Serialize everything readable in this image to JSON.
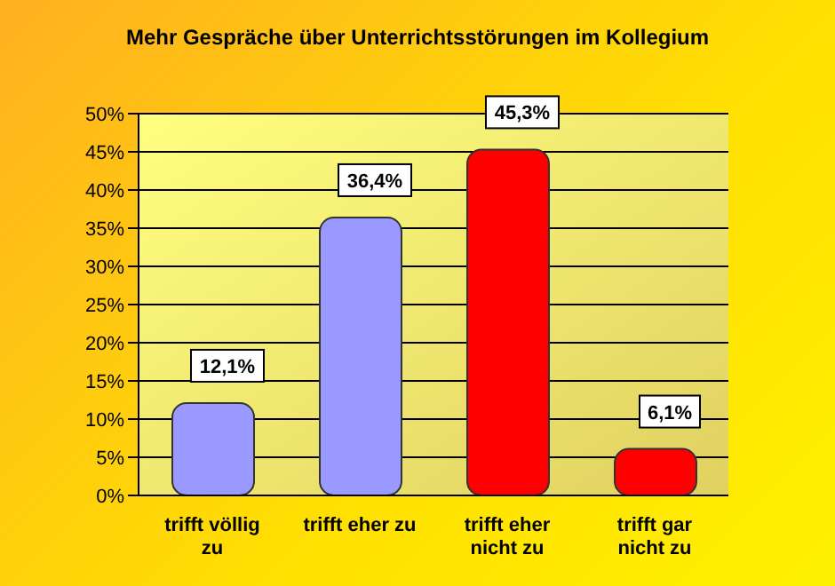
{
  "chart_data": {
    "type": "bar",
    "title": "Mehr Gespräche über Unterrichtsstörungen im Kollegium",
    "categories": [
      "trifft völlig zu",
      "trifft eher zu",
      "trifft eher nicht zu",
      "trifft gar nicht zu"
    ],
    "values": [
      12.1,
      36.4,
      45.3,
      6.1
    ],
    "colors": [
      "#9999ff",
      "#9999ff",
      "#ff0000",
      "#ff0000"
    ],
    "value_labels": [
      "12,1%",
      "36,4%",
      "45,3%",
      "6,1%"
    ],
    "ylim": [
      0,
      50
    ],
    "yticks": [
      {
        "value": 0,
        "label": "0%"
      },
      {
        "value": 5,
        "label": "5%"
      },
      {
        "value": 10,
        "label": "10%"
      },
      {
        "value": 15,
        "label": "15%"
      },
      {
        "value": 20,
        "label": "20%"
      },
      {
        "value": 25,
        "label": "25%"
      },
      {
        "value": 30,
        "label": "30%"
      },
      {
        "value": 35,
        "label": "35%"
      },
      {
        "value": 40,
        "label": "40%"
      },
      {
        "value": 45,
        "label": "45%"
      },
      {
        "value": 50,
        "label": "50%"
      }
    ],
    "grid": "y",
    "legend": false
  }
}
